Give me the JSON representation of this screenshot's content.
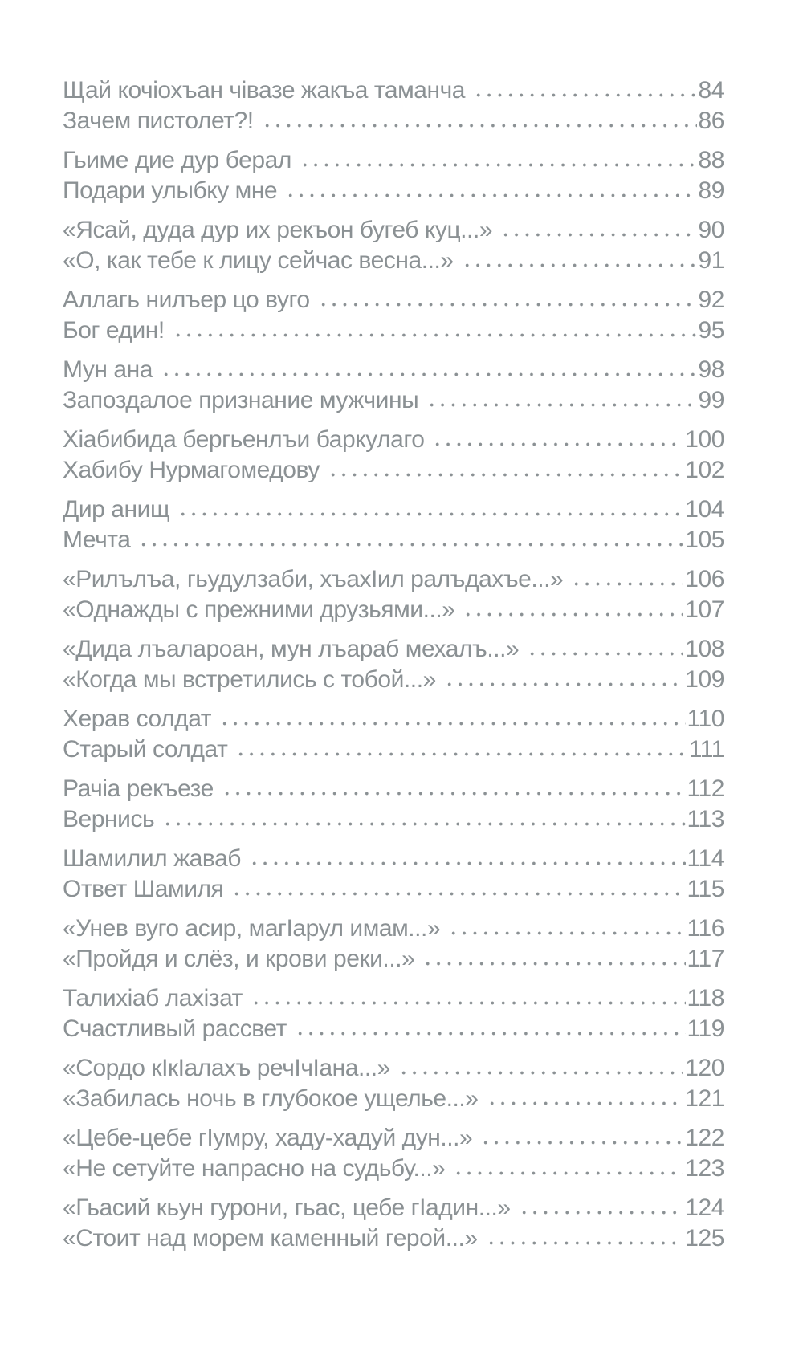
{
  "page": {
    "background_color": "#ffffff",
    "text_color": "#8b9194",
    "type_label": "table-of-contents"
  },
  "toc": {
    "pairs": [
      [
        {
          "title": "Щай кочіохъан чівазе жакъа таманча",
          "page": "84"
        },
        {
          "title": "Зачем пистолет?!",
          "page": "86"
        }
      ],
      [
        {
          "title": "Гьиме дие дур берал",
          "page": "88"
        },
        {
          "title": "Подари улыбку мне",
          "page": "89"
        }
      ],
      [
        {
          "title": "«Ясай, дуда дур их рекъон бугеб куц...»",
          "page": "90"
        },
        {
          "title": "«О, как тебе к лицу сейчас весна...»",
          "page": "91"
        }
      ],
      [
        {
          "title": "Аллагь нилъер цо вуго",
          "page": "92"
        },
        {
          "title": "Бог един!",
          "page": "95"
        }
      ],
      [
        {
          "title": "Мун ана",
          "page": "98"
        },
        {
          "title": "Запоздалое признание мужчины",
          "page": "99"
        }
      ],
      [
        {
          "title": "Хіабибида бергьенлъи баркулаго",
          "page": "100"
        },
        {
          "title": "Хабибу Нурмагомедову",
          "page": "102"
        }
      ],
      [
        {
          "title": "Дир анищ",
          "page": "104"
        },
        {
          "title": "Мечта",
          "page": "105"
        }
      ],
      [
        {
          "title": "«Рилълъа, гьудулзаби, хъахІил ралъдахъе...»",
          "page": "106"
        },
        {
          "title": "«Однажды с прежними друзьями...»",
          "page": "107"
        }
      ],
      [
        {
          "title": "«Дида лъалароан, мун лъараб мехалъ...»",
          "page": "108"
        },
        {
          "title": "«Когда мы встретились с тобой...»",
          "page": "109"
        }
      ],
      [
        {
          "title": "Херав солдат",
          "page": "110"
        },
        {
          "title": "Старый солдат",
          "page": "111"
        }
      ],
      [
        {
          "title": "Рачіа рекъезе",
          "page": "112"
        },
        {
          "title": "Вернись",
          "page": "113"
        }
      ],
      [
        {
          "title": "Шамилил жаваб",
          "page": "114"
        },
        {
          "title": "Ответ Шамиля",
          "page": "115"
        }
      ],
      [
        {
          "title": "«Унев вуго асир, магІарул имам...»",
          "page": "116"
        },
        {
          "title": "«Пройдя и слёз, и крови реки...»",
          "page": "117"
        }
      ],
      [
        {
          "title": "Талихіаб лахізат",
          "page": "118"
        },
        {
          "title": "Счастливый рассвет",
          "page": "119"
        }
      ],
      [
        {
          "title": "«Сордо кІкІалахъ речІчІана...»",
          "page": "120"
        },
        {
          "title": "«Забилась ночь в глубокое ущелье...»",
          "page": "121"
        }
      ],
      [
        {
          "title": "«Цебе-цебе гІумру, хаду-хадуй дун...»",
          "page": "122"
        },
        {
          "title": "«Не сетуйте напрасно на судьбу...»",
          "page": "123"
        }
      ],
      [
        {
          "title": "«Гьасий кьун гурони, гьас, цебе гІадин...»",
          "page": "124"
        },
        {
          "title": "«Стоит над морем каменный герой...»",
          "page": "125"
        }
      ]
    ]
  }
}
